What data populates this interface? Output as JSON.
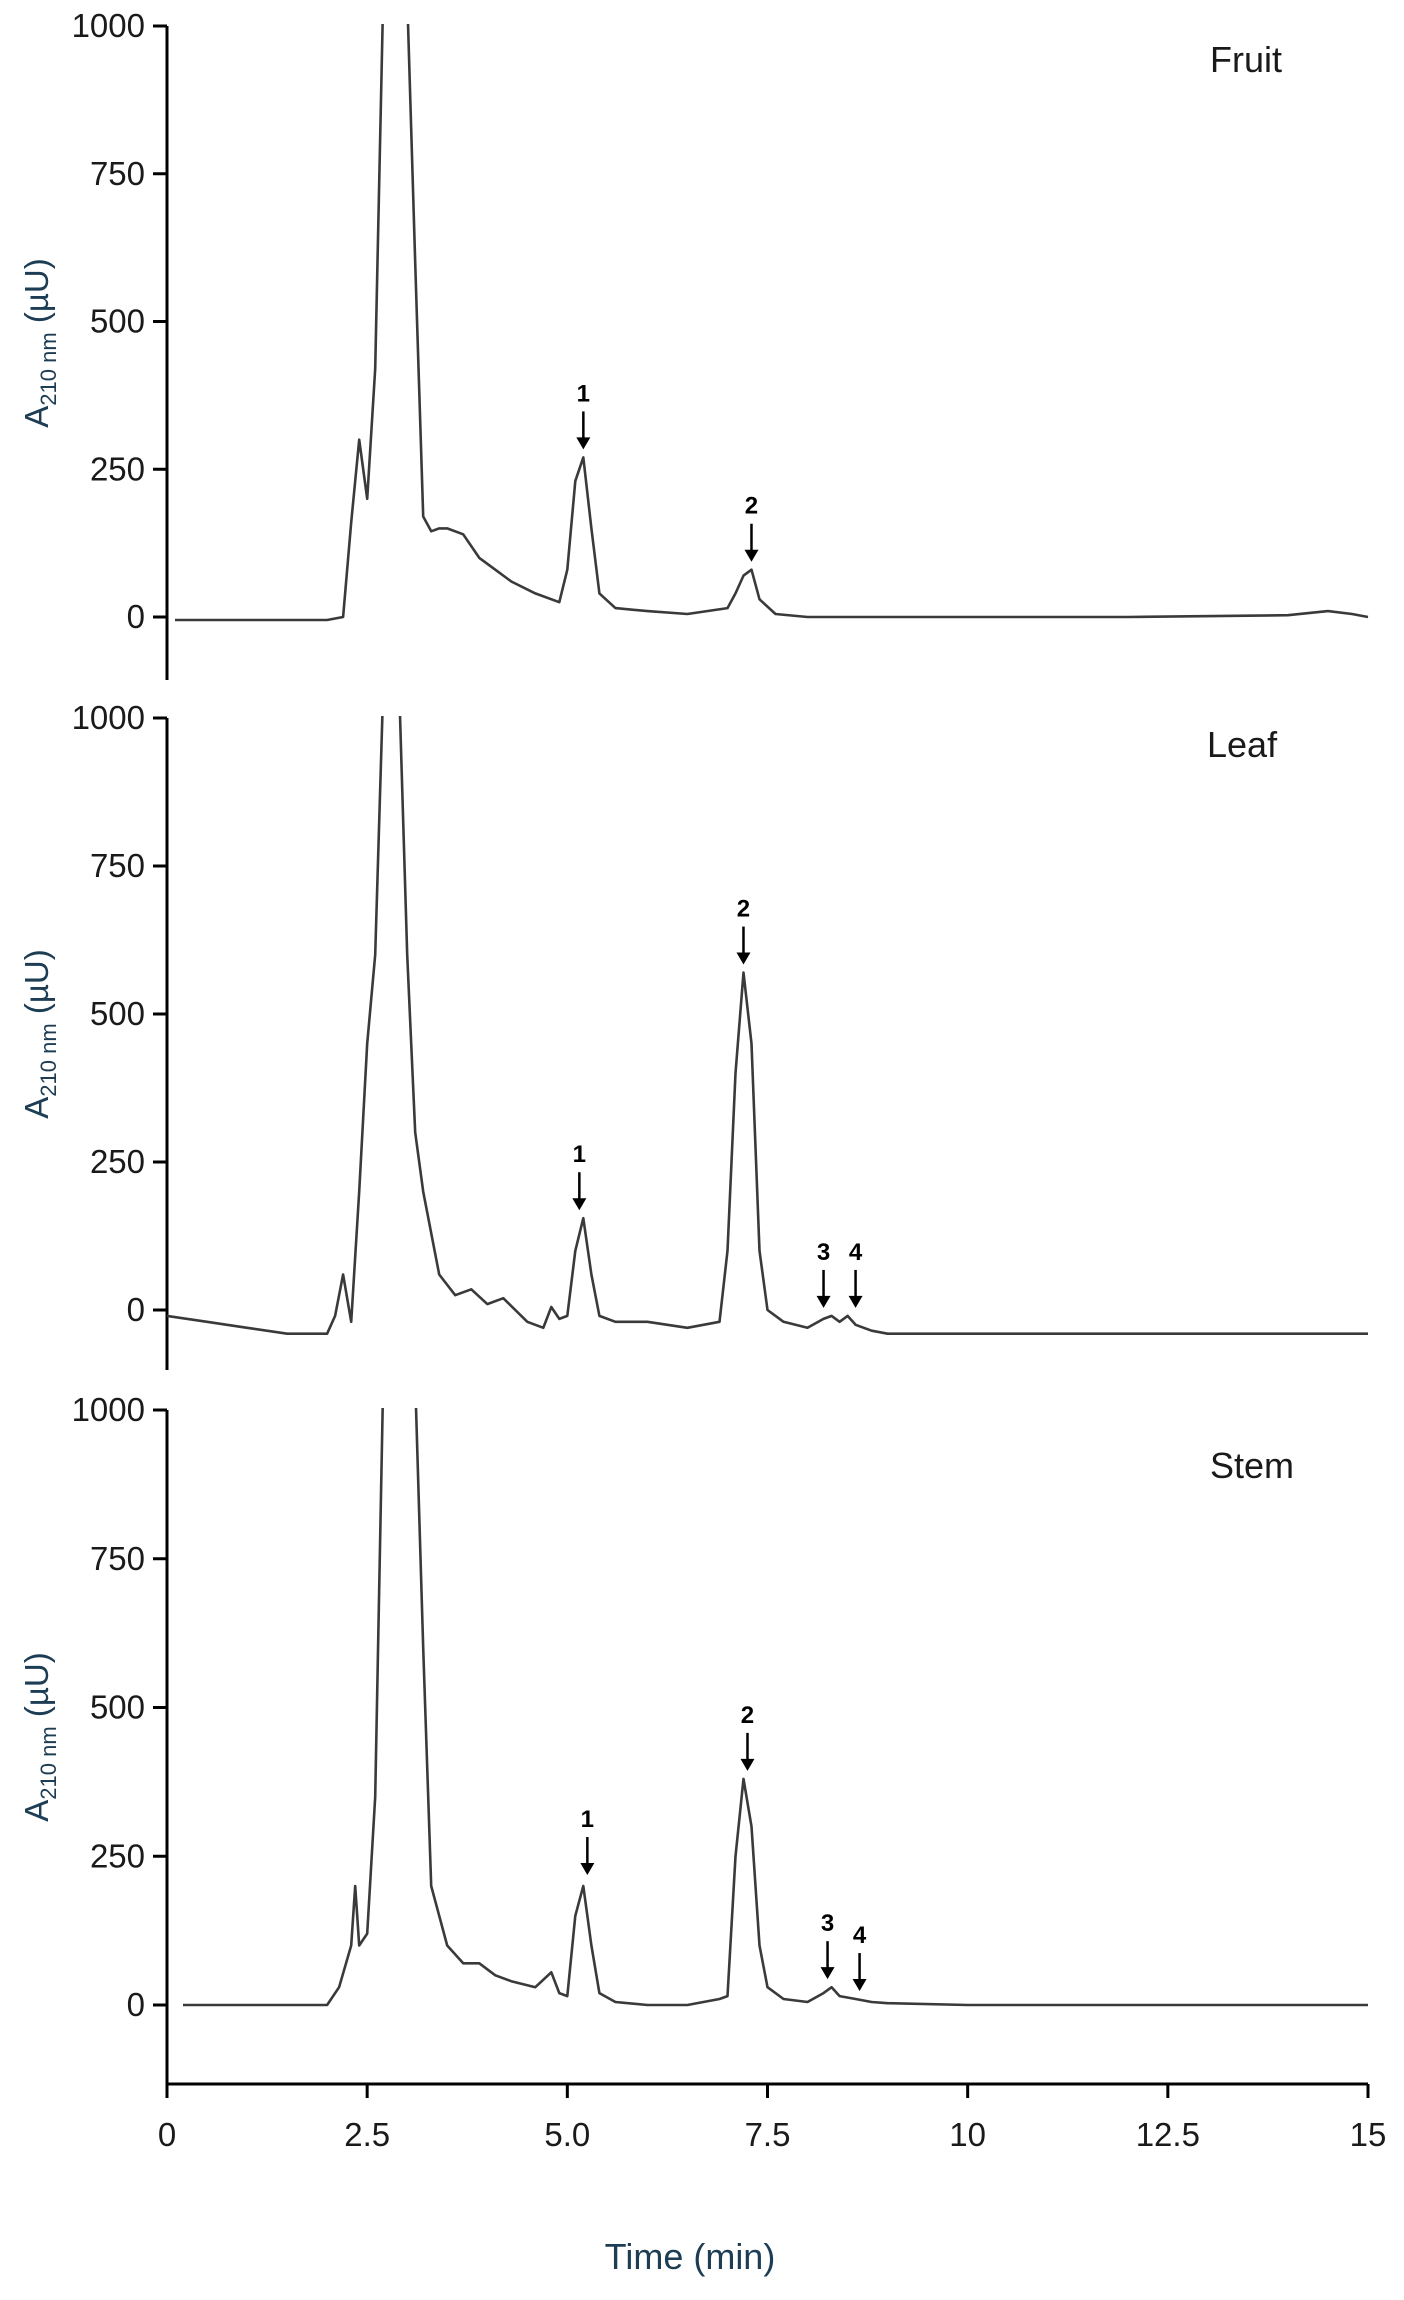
{
  "colors": {
    "trace": "#3a3a3a",
    "axis": "#000000",
    "ylabel": "#1d3d55"
  },
  "chart_data": [
    {
      "type": "line",
      "title": "Fruit",
      "ylabel": "A",
      "ylabel_sub": "210 nm",
      "ylabel_unit": "(µU)",
      "xlim": [
        0,
        15
      ],
      "ylim": [
        -100,
        1000
      ],
      "y_ticks": [
        "0",
        "250",
        "500",
        "750",
        "1000"
      ],
      "y_tick_values": [
        0,
        250,
        500,
        750,
        1000
      ],
      "series": [
        {
          "x": [
            0.1,
            2.0,
            2.2,
            2.3,
            2.4,
            2.5,
            2.6,
            2.7,
            2.8,
            2.9,
            3.0,
            3.1,
            3.2,
            3.3,
            3.4,
            3.5,
            3.7,
            3.9,
            4.1,
            4.3,
            4.6,
            4.9,
            5.0,
            5.1,
            5.2,
            5.3,
            5.4,
            5.6,
            6.0,
            6.5,
            7.0,
            7.1,
            7.2,
            7.3,
            7.4,
            7.6,
            8.0,
            9.0,
            10.0,
            12.0,
            14.0,
            14.5,
            14.8,
            15.0
          ],
          "y": [
            -5,
            -5,
            0,
            160,
            300,
            200,
            420,
            1050,
            1050,
            1050,
            1050,
            600,
            170,
            145,
            150,
            150,
            140,
            100,
            80,
            60,
            40,
            25,
            80,
            230,
            270,
            150,
            40,
            15,
            10,
            5,
            15,
            40,
            70,
            80,
            30,
            5,
            0,
            0,
            0,
            0,
            3,
            10,
            5,
            0
          ]
        }
      ],
      "annotations": [
        {
          "label": "1",
          "x": 5.2,
          "y": 270
        },
        {
          "label": "2",
          "x": 7.3,
          "y": 80
        }
      ]
    },
    {
      "type": "line",
      "title": "Leaf",
      "ylabel": "A",
      "ylabel_sub": "210 nm",
      "ylabel_unit": "(µU)",
      "xlim": [
        0,
        15
      ],
      "ylim": [
        -100,
        1000
      ],
      "y_ticks": [
        "0",
        "250",
        "500",
        "750",
        "1000"
      ],
      "y_tick_values": [
        0,
        250,
        500,
        750,
        1000
      ],
      "series": [
        {
          "x": [
            0.0,
            0.5,
            1.0,
            1.5,
            2.0,
            2.1,
            2.2,
            2.3,
            2.4,
            2.5,
            2.6,
            2.7,
            2.8,
            2.9,
            3.0,
            3.1,
            3.2,
            3.4,
            3.6,
            3.8,
            4.0,
            4.2,
            4.5,
            4.7,
            4.8,
            4.9,
            5.0,
            5.1,
            5.2,
            5.3,
            5.4,
            5.6,
            6.0,
            6.5,
            6.9,
            7.0,
            7.1,
            7.2,
            7.3,
            7.4,
            7.5,
            7.7,
            8.0,
            8.2,
            8.3,
            8.4,
            8.5,
            8.6,
            8.8,
            9.0,
            10.0,
            12.0,
            15.0
          ],
          "y": [
            -10,
            -20,
            -30,
            -40,
            -40,
            -10,
            60,
            -20,
            200,
            450,
            600,
            1050,
            1050,
            1050,
            600,
            300,
            200,
            60,
            25,
            35,
            10,
            20,
            -20,
            -30,
            5,
            -15,
            -10,
            100,
            155,
            60,
            -10,
            -20,
            -20,
            -30,
            -20,
            100,
            400,
            570,
            450,
            100,
            0,
            -20,
            -30,
            -15,
            -10,
            -20,
            -10,
            -25,
            -35,
            -40,
            -40,
            -40,
            -40
          ]
        }
      ],
      "annotations": [
        {
          "label": "1",
          "x": 5.15,
          "y": 155
        },
        {
          "label": "2",
          "x": 7.2,
          "y": 570
        },
        {
          "label": "3",
          "x": 8.2,
          "y": -10
        },
        {
          "label": "4",
          "x": 8.6,
          "y": -10
        }
      ]
    },
    {
      "type": "line",
      "title": "Stem",
      "ylabel": "A",
      "ylabel_sub": "210 nm",
      "ylabel_unit": "(µU)",
      "xlim": [
        0,
        15
      ],
      "ylim": [
        -100,
        1000
      ],
      "y_ticks": [
        "0",
        "250",
        "500",
        "750",
        "1000"
      ],
      "y_tick_values": [
        0,
        250,
        500,
        750,
        1000
      ],
      "series": [
        {
          "x": [
            0.2,
            1.5,
            2.0,
            2.15,
            2.3,
            2.35,
            2.4,
            2.5,
            2.6,
            2.7,
            2.8,
            2.9,
            3.0,
            3.1,
            3.2,
            3.3,
            3.5,
            3.7,
            3.9,
            4.1,
            4.3,
            4.6,
            4.8,
            4.9,
            5.0,
            5.1,
            5.2,
            5.3,
            5.4,
            5.6,
            6.0,
            6.5,
            6.9,
            7.0,
            7.1,
            7.2,
            7.3,
            7.4,
            7.5,
            7.7,
            8.0,
            8.2,
            8.3,
            8.4,
            8.6,
            8.8,
            9.0,
            10.0,
            12.0,
            14.0,
            15.0
          ],
          "y": [
            0,
            0,
            0,
            30,
            100,
            200,
            100,
            120,
            350,
            1050,
            1050,
            1050,
            1050,
            1050,
            600,
            200,
            100,
            70,
            70,
            50,
            40,
            30,
            55,
            20,
            15,
            150,
            200,
            100,
            20,
            5,
            0,
            0,
            10,
            15,
            250,
            380,
            300,
            100,
            30,
            10,
            5,
            20,
            30,
            15,
            10,
            5,
            3,
            0,
            0,
            0,
            0
          ]
        }
      ],
      "annotations": [
        {
          "label": "1",
          "x": 5.25,
          "y": 205
        },
        {
          "label": "2",
          "x": 7.25,
          "y": 380
        },
        {
          "label": "3",
          "x": 8.25,
          "y": 30
        },
        {
          "label": "4",
          "x": 8.65,
          "y": 10
        }
      ]
    }
  ],
  "x_axis": {
    "label": "Time (min)",
    "ticks": [
      "0",
      "2.5",
      "5.0",
      "7.5",
      "10",
      "12.5",
      "15"
    ],
    "tick_values": [
      0,
      2.5,
      5,
      7.5,
      10,
      12.5,
      15
    ]
  }
}
